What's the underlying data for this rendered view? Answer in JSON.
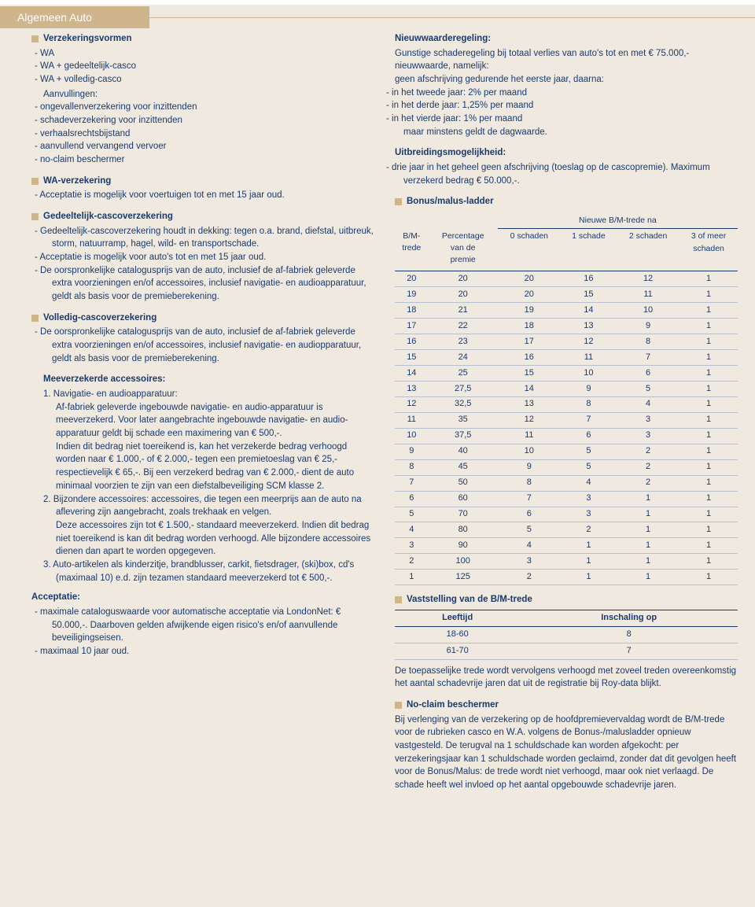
{
  "page_title": "Algemeen Auto",
  "colors": {
    "accent": "#cfb58c",
    "text": "#1a3a6e",
    "bg": "#f0e9df"
  },
  "left": {
    "s1_head": "Verzekeringsvormen",
    "s1_items": [
      "WA",
      "WA + gedeeltelijk-casco",
      "WA + volledig-casco"
    ],
    "s1_sub": "Aanvullingen:",
    "s1_sub_items": [
      "ongevallenverzekering voor inzittenden",
      "schadeverzekering voor inzittenden",
      "verhaalsrechtsbijstand",
      "aanvullend vervangend vervoer",
      "no-claim beschermer"
    ],
    "s2_head": "WA-verzekering",
    "s2_items": [
      "Acceptatie is mogelijk voor voertuigen tot en met 15 jaar oud."
    ],
    "s3_head": "Gedeeltelijk-cascoverzekering",
    "s3_items": [
      "Gedeeltelijk-cascoverzekering houdt in dekking: tegen o.a. brand, diefstal, uitbreuk, storm, natuurramp, hagel, wild- en transportschade.",
      "Acceptatie is mogelijk voor auto's tot en met 15 jaar oud.",
      "De oorspronkelijke catalogusprijs van de auto, inclusief de af-fabriek geleverde extra voorzieningen en/of accessoires, inclusief navigatie- en audioapparatuur, geldt als basis voor de premieberekening."
    ],
    "s4_head": "Volledig-cascoverzekering",
    "s4_items": [
      "De oorspronkelijke catalogusprijs van de auto, inclusief de af-fabriek geleverde extra voorzieningen en/of accessoires, inclusief navigatie- en audiopparatuur, geldt als basis voor de premieberekening."
    ],
    "acc_head": "Meeverzekerde accessoires:",
    "acc_items": [
      "1.  Navigatie- en audioapparatuur:\nAf-fabriek geleverde ingebouwde navigatie- en audio-apparatuur is meeverzekerd. Voor later aangebrachte ingebouwde navigatie- en audio-apparatuur geldt bij schade een maximering van € 500,-.\nIndien dit bedrag niet toereikend is, kan het verzekerde bedrag verhoogd worden naar € 1.000,- of € 2.000,- tegen een premietoeslag van € 25,-  respectievelijk  € 65,-. Bij een verzekerd bedrag van € 2.000,- dient de auto minimaal voorzien te zijn van een diefstalbeveiliging SCM klasse 2.",
      "2.  Bijzondere accessoires: accessoires, die tegen een meerprijs aan de auto na aflevering zijn aangebracht, zoals trekhaak en velgen.\nDeze accessoires zijn tot € 1.500,- standaard meeverzekerd. Indien dit bedrag niet toereikend is kan dit bedrag worden verhoogd. Alle bijzondere accessoires dienen dan apart te worden opgegeven.",
      "3.  Auto-artikelen als kinderzitje, brandblusser, carkit, fietsdrager, (ski)box, cd's (maximaal 10) e.d. zijn tezamen standaard meeverzekerd tot € 500,-."
    ],
    "accept_head": "Acceptatie:",
    "accept_items": [
      "maximale cataloguswaarde voor automatische acceptatie via LondonNet: € 50.000,-. Daarboven gelden afwijkende eigen risico's en/of aanvullende beveiligingseisen.",
      "maximaal 10 jaar oud."
    ]
  },
  "right": {
    "nw_head": "Nieuwwaarderegeling:",
    "nw_intro1": "Gunstige schaderegeling bij totaal verlies van auto's tot en met € 75.000,-",
    "nw_intro2": "nieuwwaarde, namelijk:",
    "nw_intro3": "geen afschrijving gedurende het eerste jaar, daarna:",
    "nw_items": [
      "in het tweede jaar: 2% per maand",
      "in het derde jaar: 1,25% per maand",
      "in het vierde jaar: 1% per maand\nmaar minstens geldt de dagwaarde."
    ],
    "uit_head": "Uitbreidingsmogelijkheid:",
    "uit_items": [
      "drie jaar in het geheel geen afschrijving (toeslag op de cascopremie). Maximum verzekerd bedrag € 50.000,-."
    ],
    "bm_head": "Bonus/malus-ladder",
    "bm_group_label": "Nieuwe B/M-trede na",
    "bm_cols": [
      "B/M-\ntrede",
      "Percentage\nvan de\npremie",
      "0 schaden",
      "1 schade",
      "2 schaden",
      "3 of meer\nschaden"
    ],
    "bm_rows": [
      [
        20,
        20,
        20,
        16,
        12,
        1
      ],
      [
        19,
        20,
        20,
        15,
        11,
        1
      ],
      [
        18,
        21,
        19,
        14,
        10,
        1
      ],
      [
        17,
        22,
        18,
        13,
        9,
        1
      ],
      [
        16,
        23,
        17,
        12,
        8,
        1
      ],
      [
        15,
        24,
        16,
        11,
        7,
        1
      ],
      [
        14,
        25,
        15,
        10,
        6,
        1
      ],
      [
        13,
        "27,5",
        14,
        9,
        5,
        1
      ],
      [
        12,
        "32,5",
        13,
        8,
        4,
        1
      ],
      [
        11,
        35,
        12,
        7,
        3,
        1
      ],
      [
        10,
        "37,5",
        11,
        6,
        3,
        1
      ],
      [
        9,
        40,
        10,
        5,
        2,
        1
      ],
      [
        8,
        45,
        9,
        5,
        2,
        1
      ],
      [
        7,
        50,
        8,
        4,
        2,
        1
      ],
      [
        6,
        60,
        7,
        3,
        1,
        1
      ],
      [
        5,
        70,
        6,
        3,
        1,
        1
      ],
      [
        4,
        80,
        5,
        2,
        1,
        1
      ],
      [
        3,
        90,
        4,
        1,
        1,
        1
      ],
      [
        2,
        100,
        3,
        1,
        1,
        1
      ],
      [
        1,
        125,
        2,
        1,
        1,
        1
      ]
    ],
    "vast_head": "Vaststelling van de B/M-trede",
    "age_cols": [
      "Leeftijd",
      "Inschaling op"
    ],
    "age_rows": [
      [
        "18-60",
        "8"
      ],
      [
        "61-70",
        "7"
      ]
    ],
    "vast_para": "De toepasselijke trede wordt vervolgens verhoogd met zoveel treden overeenkomstig het aantal schadevrije jaren dat uit de registratie bij Roy-data blijkt.",
    "nc_head": "No-claim beschermer",
    "nc_para": "Bij verlenging van de verzekering op de hoofdpremievervaldag wordt de B/M-trede voor de rubrieken casco en W.A. volgens de Bonus-/malusladder opnieuw vastgesteld. De terugval na 1 schuldschade kan worden afgekocht: per verzekeringsjaar kan 1 schuldschade worden geclaimd, zonder dat dit gevolgen heeft voor de Bonus/Malus: de trede wordt niet verhoogd, maar ook niet verlaagd. De schade heeft wel invloed op het aantal opgebouwde schadevrije jaren."
  }
}
